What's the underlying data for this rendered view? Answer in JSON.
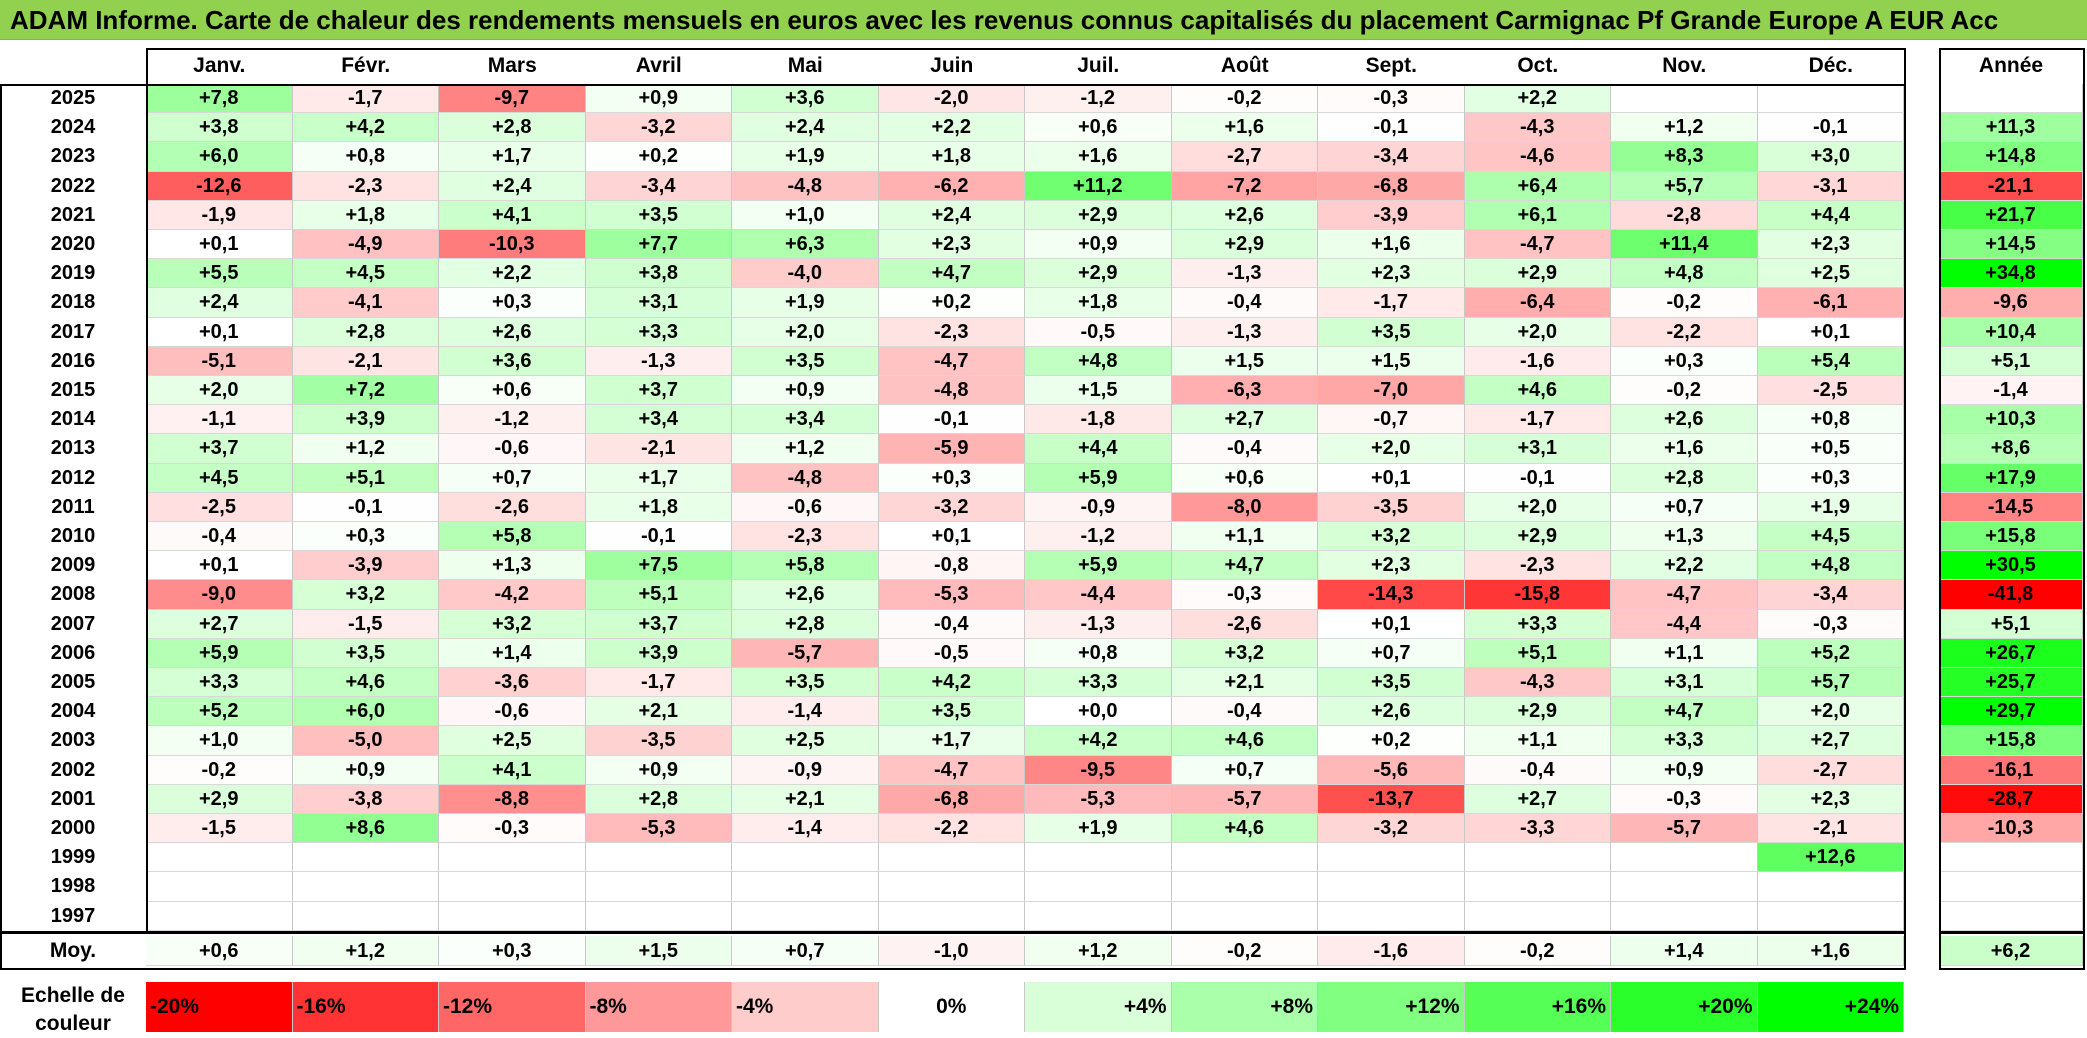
{
  "title": "ADAM Informe. Carte de chaleur des rendements mensuels en euros avec les revenus connus capitalisés du placement Carmignac Pf Grande Europe A EUR Acc",
  "colors": {
    "title_bg": "#92d050",
    "neg_full": "#ff0000",
    "pos_full": "#00ff00",
    "zero": "#ffffff"
  },
  "chart_data": {
    "type": "heatmap",
    "title": "ADAM Informe. Carte de chaleur des rendements mensuels en euros avec les revenus connus capitalisés du placement Carmignac Pf Grande Europe A EUR Acc",
    "columns": [
      "Janv.",
      "Févr.",
      "Mars",
      "Avril",
      "Mai",
      "Juin",
      "Juil.",
      "Août",
      "Sept.",
      "Oct.",
      "Nov.",
      "Déc."
    ],
    "year_column_label": "Année",
    "avg_label": "Moy.",
    "rows": [
      {
        "year": "2025",
        "values": [
          "+7,8",
          "-1,7",
          "-9,7",
          "+0,9",
          "+3,6",
          "-2,0",
          "-1,2",
          "-0,2",
          "-0,3",
          "+2,2",
          "",
          ""
        ],
        "annual": ""
      },
      {
        "year": "2024",
        "values": [
          "+3,8",
          "+4,2",
          "+2,8",
          "-3,2",
          "+2,4",
          "+2,2",
          "+0,6",
          "+1,6",
          "-0,1",
          "-4,3",
          "+1,2",
          "-0,1"
        ],
        "annual": "+11,3"
      },
      {
        "year": "2023",
        "values": [
          "+6,0",
          "+0,8",
          "+1,7",
          "+0,2",
          "+1,9",
          "+1,8",
          "+1,6",
          "-2,7",
          "-3,4",
          "-4,6",
          "+8,3",
          "+3,0"
        ],
        "annual": "+14,8"
      },
      {
        "year": "2022",
        "values": [
          "-12,6",
          "-2,3",
          "+2,4",
          "-3,4",
          "-4,8",
          "-6,2",
          "+11,2",
          "-7,2",
          "-6,8",
          "+6,4",
          "+5,7",
          "-3,1"
        ],
        "annual": "-21,1"
      },
      {
        "year": "2021",
        "values": [
          "-1,9",
          "+1,8",
          "+4,1",
          "+3,5",
          "+1,0",
          "+2,4",
          "+2,9",
          "+2,6",
          "-3,9",
          "+6,1",
          "-2,8",
          "+4,4"
        ],
        "annual": "+21,7"
      },
      {
        "year": "2020",
        "values": [
          "+0,1",
          "-4,9",
          "-10,3",
          "+7,7",
          "+6,3",
          "+2,3",
          "+0,9",
          "+2,9",
          "+1,6",
          "-4,7",
          "+11,4",
          "+2,3"
        ],
        "annual": "+14,5"
      },
      {
        "year": "2019",
        "values": [
          "+5,5",
          "+4,5",
          "+2,2",
          "+3,8",
          "-4,0",
          "+4,7",
          "+2,9",
          "-1,3",
          "+2,3",
          "+2,9",
          "+4,8",
          "+2,5"
        ],
        "annual": "+34,8"
      },
      {
        "year": "2018",
        "values": [
          "+2,4",
          "-4,1",
          "+0,3",
          "+3,1",
          "+1,9",
          "+0,2",
          "+1,8",
          "-0,4",
          "-1,7",
          "-6,4",
          "-0,2",
          "-6,1"
        ],
        "annual": "-9,6"
      },
      {
        "year": "2017",
        "values": [
          "+0,1",
          "+2,8",
          "+2,6",
          "+3,3",
          "+2,0",
          "-2,3",
          "-0,5",
          "-1,3",
          "+3,5",
          "+2,0",
          "-2,2",
          "+0,1"
        ],
        "annual": "+10,4"
      },
      {
        "year": "2016",
        "values": [
          "-5,1",
          "-2,1",
          "+3,6",
          "-1,3",
          "+3,5",
          "-4,7",
          "+4,8",
          "+1,5",
          "+1,5",
          "-1,6",
          "+0,3",
          "+5,4"
        ],
        "annual": "+5,1"
      },
      {
        "year": "2015",
        "values": [
          "+2,0",
          "+7,2",
          "+0,6",
          "+3,7",
          "+0,9",
          "-4,8",
          "+1,5",
          "-6,3",
          "-7,0",
          "+4,6",
          "-0,2",
          "-2,5"
        ],
        "annual": "-1,4"
      },
      {
        "year": "2014",
        "values": [
          "-1,1",
          "+3,9",
          "-1,2",
          "+3,4",
          "+3,4",
          "-0,1",
          "-1,8",
          "+2,7",
          "-0,7",
          "-1,7",
          "+2,6",
          "+0,8"
        ],
        "annual": "+10,3"
      },
      {
        "year": "2013",
        "values": [
          "+3,7",
          "+1,2",
          "-0,6",
          "-2,1",
          "+1,2",
          "-5,9",
          "+4,4",
          "-0,4",
          "+2,0",
          "+3,1",
          "+1,6",
          "+0,5"
        ],
        "annual": "+8,6"
      },
      {
        "year": "2012",
        "values": [
          "+4,5",
          "+5,1",
          "+0,7",
          "+1,7",
          "-4,8",
          "+0,3",
          "+5,9",
          "+0,6",
          "+0,1",
          "-0,1",
          "+2,8",
          "+0,3"
        ],
        "annual": "+17,9"
      },
      {
        "year": "2011",
        "values": [
          "-2,5",
          "-0,1",
          "-2,6",
          "+1,8",
          "-0,6",
          "-3,2",
          "-0,9",
          "-8,0",
          "-3,5",
          "+2,0",
          "+0,7",
          "+1,9"
        ],
        "annual": "-14,5"
      },
      {
        "year": "2010",
        "values": [
          "-0,4",
          "+0,3",
          "+5,8",
          "-0,1",
          "-2,3",
          "+0,1",
          "-1,2",
          "+1,1",
          "+3,2",
          "+2,9",
          "+1,3",
          "+4,5"
        ],
        "annual": "+15,8"
      },
      {
        "year": "2009",
        "values": [
          "+0,1",
          "-3,9",
          "+1,3",
          "+7,5",
          "+5,8",
          "-0,8",
          "+5,9",
          "+4,7",
          "+2,3",
          "-2,3",
          "+2,2",
          "+4,8"
        ],
        "annual": "+30,5"
      },
      {
        "year": "2008",
        "values": [
          "-9,0",
          "+3,2",
          "-4,2",
          "+5,1",
          "+2,6",
          "-5,3",
          "-4,4",
          "-0,3",
          "-14,3",
          "-15,8",
          "-4,7",
          "-3,4"
        ],
        "annual": "-41,8"
      },
      {
        "year": "2007",
        "values": [
          "+2,7",
          "-1,5",
          "+3,2",
          "+3,7",
          "+2,8",
          "-0,4",
          "-1,3",
          "-2,6",
          "+0,1",
          "+3,3",
          "-4,4",
          "-0,3"
        ],
        "annual": "+5,1"
      },
      {
        "year": "2006",
        "values": [
          "+5,9",
          "+3,5",
          "+1,4",
          "+3,9",
          "-5,7",
          "-0,5",
          "+0,8",
          "+3,2",
          "+0,7",
          "+5,1",
          "+1,1",
          "+5,2"
        ],
        "annual": "+26,7"
      },
      {
        "year": "2005",
        "values": [
          "+3,3",
          "+4,6",
          "-3,6",
          "-1,7",
          "+3,5",
          "+4,2",
          "+3,3",
          "+2,1",
          "+3,5",
          "-4,3",
          "+3,1",
          "+5,7"
        ],
        "annual": "+25,7"
      },
      {
        "year": "2004",
        "values": [
          "+5,2",
          "+6,0",
          "-0,6",
          "+2,1",
          "-1,4",
          "+3,5",
          "+0,0",
          "-0,4",
          "+2,6",
          "+2,9",
          "+4,7",
          "+2,0"
        ],
        "annual": "+29,7"
      },
      {
        "year": "2003",
        "values": [
          "+1,0",
          "-5,0",
          "+2,5",
          "-3,5",
          "+2,5",
          "+1,7",
          "+4,2",
          "+4,6",
          "+0,2",
          "+1,1",
          "+3,3",
          "+2,7"
        ],
        "annual": "+15,8"
      },
      {
        "year": "2002",
        "values": [
          "-0,2",
          "+0,9",
          "+4,1",
          "+0,9",
          "-0,9",
          "-4,7",
          "-9,5",
          "+0,7",
          "-5,6",
          "-0,4",
          "+0,9",
          "-2,7"
        ],
        "annual": "-16,1"
      },
      {
        "year": "2001",
        "values": [
          "+2,9",
          "-3,8",
          "-8,8",
          "+2,8",
          "+2,1",
          "-6,8",
          "-5,3",
          "-5,7",
          "-13,7",
          "+2,7",
          "-0,3",
          "+2,3"
        ],
        "annual": "-28,7"
      },
      {
        "year": "2000",
        "values": [
          "-1,5",
          "+8,6",
          "-0,3",
          "-5,3",
          "-1,4",
          "-2,2",
          "+1,9",
          "+4,6",
          "-3,2",
          "-3,3",
          "-5,7",
          "-2,1"
        ],
        "annual": "-10,3"
      },
      {
        "year": "1999",
        "values": [
          "",
          "",
          "",
          "",
          "",
          "",
          "",
          "",
          "",
          "",
          "",
          "+12,6"
        ],
        "annual": ""
      },
      {
        "year": "1998",
        "values": [
          "",
          "",
          "",
          "",
          "",
          "",
          "",
          "",
          "",
          "",
          "",
          ""
        ],
        "annual": ""
      },
      {
        "year": "1997",
        "values": [
          "",
          "",
          "",
          "",
          "",
          "",
          "",
          "",
          "",
          "",
          "",
          ""
        ],
        "annual": ""
      }
    ],
    "averages": [
      "+0,6",
      "+1,2",
      "+0,3",
      "+1,5",
      "+0,7",
      "-1,0",
      "+1,2",
      "-0,2",
      "-1,6",
      "-0,2",
      "+1,4",
      "+1,6"
    ],
    "average_annual": "+6,2",
    "legend_label": "Echelle de couleur",
    "legend": [
      {
        "label": "-20%",
        "value": -20,
        "color": "#ff0000"
      },
      {
        "label": "-16%",
        "value": -16,
        "color": "#ff3333"
      },
      {
        "label": "-12%",
        "value": -12,
        "color": "#ff6666"
      },
      {
        "label": "-8%",
        "value": -8,
        "color": "#ff9999"
      },
      {
        "label": "-4%",
        "value": -4,
        "color": "#ffcccc"
      },
      {
        "label": "0%",
        "value": 0,
        "color": "#ffffff"
      },
      {
        "label": "+4%",
        "value": 4,
        "color": "#d9ffd9"
      },
      {
        "label": "+8%",
        "value": 8,
        "color": "#aaffaa"
      },
      {
        "label": "+12%",
        "value": 12,
        "color": "#80ff80"
      },
      {
        "label": "+16%",
        "value": 16,
        "color": "#55ff55"
      },
      {
        "label": "+20%",
        "value": 20,
        "color": "#2bff2b"
      },
      {
        "label": "+24%",
        "value": 24,
        "color": "#00ff00"
      }
    ]
  }
}
